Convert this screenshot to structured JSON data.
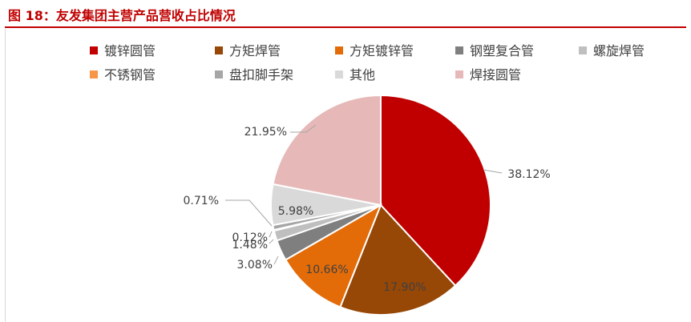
{
  "figure": {
    "title": "图 18：友发集团主营产品营收占比情况"
  },
  "chart_data": {
    "type": "pie",
    "title": "",
    "legend_position": "top",
    "series": [
      {
        "name": "镀锌圆管",
        "value": 38.12,
        "label": "38.12%",
        "color": "#c00000"
      },
      {
        "name": "方矩焊管",
        "value": 17.9,
        "label": "17.90%",
        "color": "#974706"
      },
      {
        "name": "方矩镀锌管",
        "value": 10.66,
        "label": "10.66%",
        "color": "#e36c09"
      },
      {
        "name": "钢塑复合管",
        "value": 3.08,
        "label": "3.08%",
        "color": "#7f7f7f"
      },
      {
        "name": "螺旋焊管",
        "value": 1.48,
        "label": "1.48%",
        "color": "#bfbfbf"
      },
      {
        "name": "不锈钢管",
        "value": 0.12,
        "label": "0.12%",
        "color": "#f79646"
      },
      {
        "name": "盘扣脚手架",
        "value": 0.71,
        "label": "0.71%",
        "color": "#a6a6a6"
      },
      {
        "name": "其他",
        "value": 5.98,
        "label": "5.98%",
        "color": "#d9d9d9"
      },
      {
        "name": "焊接圆管",
        "value": 21.95,
        "label": "21.95%",
        "color": "#e6b9b8"
      }
    ]
  }
}
